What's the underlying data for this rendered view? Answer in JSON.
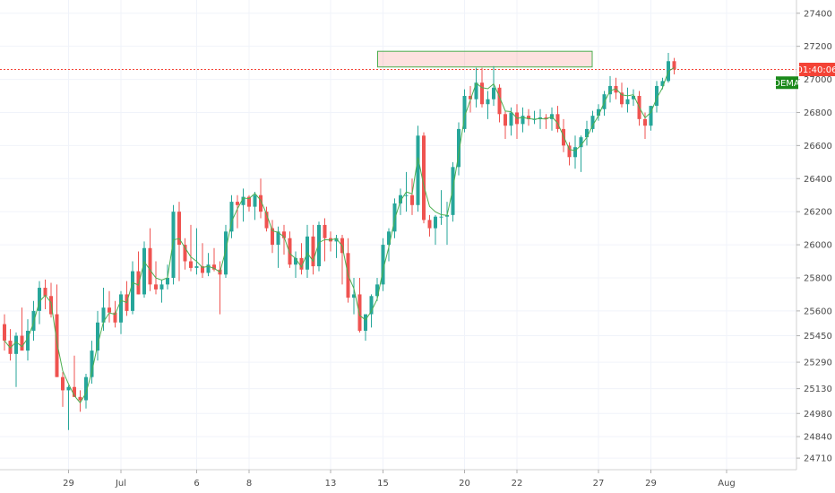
{
  "chart_data": {
    "type": "candlestick",
    "title": "",
    "xlabel": "",
    "ylabel": "",
    "ylim": [
      24640,
      27480
    ],
    "y_ticks": [
      "27400",
      "27200",
      "27000",
      "26800",
      "26600",
      "26400",
      "26200",
      "26000",
      "25800",
      "25600",
      "25450",
      "25290",
      "25130",
      "24980",
      "24840",
      "24710"
    ],
    "x_ticks": [
      {
        "label": "29",
        "bar": 11
      },
      {
        "label": "Jul",
        "bar": 20
      },
      {
        "label": "6",
        "bar": 33
      },
      {
        "label": "8",
        "bar": 42
      },
      {
        "label": "13",
        "bar": 56
      },
      {
        "label": "15",
        "bar": 65
      },
      {
        "label": "20",
        "bar": 79
      },
      {
        "label": "22",
        "bar": 88
      },
      {
        "label": "27",
        "bar": 102
      },
      {
        "label": "29",
        "bar": 111
      },
      {
        "label": "Aug",
        "bar": 124
      }
    ],
    "bar_count": 134,
    "up_color": "#26a69a",
    "down_color": "#ef5350",
    "ma_color": "#4caf50",
    "grid": true,
    "current_price": {
      "label": "01:40:06",
      "value": 27060,
      "color": "#f44336"
    },
    "indicator_label": {
      "label": "DEMA",
      "value": 26980,
      "color": "#1b8a1b"
    },
    "zone": {
      "bar_start": 65,
      "bar_end": 100,
      "low": 27075,
      "high": 27170
    },
    "candles": [
      [
        25520,
        25580,
        25360,
        25420
      ],
      [
        25420,
        25490,
        25300,
        25340
      ],
      [
        25340,
        25470,
        25140,
        25450
      ],
      [
        25450,
        25620,
        25380,
        25360
      ],
      [
        25360,
        25550,
        25300,
        25480
      ],
      [
        25480,
        25660,
        25420,
        25600
      ],
      [
        25600,
        25780,
        25520,
        25740
      ],
      [
        25740,
        25790,
        25610,
        25690
      ],
      [
        25690,
        25770,
        25560,
        25580
      ],
      [
        25580,
        25760,
        25200,
        25200
      ],
      [
        25200,
        25230,
        25020,
        25120
      ],
      [
        25120,
        25150,
        24880,
        25140
      ],
      [
        25140,
        25330,
        25080,
        25080
      ],
      [
        25080,
        25120,
        24990,
        25060
      ],
      [
        25060,
        25220,
        25010,
        25200
      ],
      [
        25200,
        25420,
        25160,
        25360
      ],
      [
        25360,
        25600,
        25300,
        25530
      ],
      [
        25530,
        25740,
        25480,
        25620
      ],
      [
        25620,
        25720,
        25530,
        25590
      ],
      [
        25590,
        25660,
        25500,
        25530
      ],
      [
        25530,
        25720,
        25460,
        25700
      ],
      [
        25700,
        25780,
        25570,
        25600
      ],
      [
        25600,
        25900,
        25580,
        25840
      ],
      [
        25840,
        25960,
        25700,
        25700
      ],
      [
        25700,
        26020,
        25680,
        25980
      ],
      [
        25980,
        26100,
        25720,
        25760
      ],
      [
        25760,
        25900,
        25700,
        25730
      ],
      [
        25730,
        25790,
        25650,
        25760
      ],
      [
        25760,
        25880,
        25730,
        25800
      ],
      [
        25800,
        26240,
        25760,
        26200
      ],
      [
        26200,
        26260,
        25780,
        26000
      ],
      [
        26000,
        26040,
        25850,
        25900
      ],
      [
        25900,
        26120,
        25840,
        25860
      ],
      [
        25860,
        26100,
        25820,
        25870
      ],
      [
        25870,
        26010,
        25800,
        25830
      ],
      [
        25830,
        25950,
        25810,
        25880
      ],
      [
        25880,
        25980,
        25840,
        25850
      ],
      [
        25850,
        25900,
        25580,
        25820
      ],
      [
        25820,
        26120,
        25800,
        26080
      ],
      [
        26080,
        26300,
        26040,
        26260
      ],
      [
        26260,
        26300,
        26100,
        26240
      ],
      [
        26240,
        26340,
        26140,
        26290
      ],
      [
        26290,
        26300,
        26200,
        26230
      ],
      [
        26230,
        26320,
        26150,
        26300
      ],
      [
        26300,
        26400,
        26160,
        26200
      ],
      [
        26200,
        26230,
        26080,
        26100
      ],
      [
        26100,
        26150,
        25950,
        26000
      ],
      [
        26000,
        26110,
        25860,
        26080
      ],
      [
        26080,
        26120,
        25940,
        26040
      ],
      [
        26040,
        26080,
        25860,
        25880
      ],
      [
        25880,
        25960,
        25800,
        25920
      ],
      [
        25920,
        26010,
        25820,
        25850
      ],
      [
        25850,
        26120,
        25800,
        26050
      ],
      [
        26050,
        26120,
        25820,
        25870
      ],
      [
        25870,
        26140,
        25840,
        26120
      ],
      [
        26120,
        26160,
        25900,
        26040
      ],
      [
        26040,
        26080,
        25960,
        26020
      ],
      [
        26020,
        26060,
        25920,
        26040
      ],
      [
        26040,
        26060,
        25760,
        25950
      ],
      [
        25950,
        26040,
        25650,
        25680
      ],
      [
        25680,
        25800,
        25580,
        25700
      ],
      [
        25700,
        25800,
        25470,
        25480
      ],
      [
        25480,
        25560,
        25420,
        25580
      ],
      [
        25580,
        25700,
        25500,
        25690
      ],
      [
        25690,
        25800,
        25660,
        25760
      ],
      [
        25760,
        26040,
        25720,
        26000
      ],
      [
        26000,
        26100,
        25900,
        26080
      ],
      [
        26080,
        26280,
        26040,
        26250
      ],
      [
        26250,
        26340,
        26180,
        26300
      ],
      [
        26300,
        26440,
        26200,
        26300
      ],
      [
        26300,
        26400,
        26180,
        26240
      ],
      [
        26240,
        26720,
        26200,
        26660
      ],
      [
        26660,
        26680,
        26130,
        26150
      ],
      [
        26150,
        26180,
        26050,
        26100
      ],
      [
        26100,
        26180,
        26000,
        26170
      ],
      [
        26170,
        26330,
        26120,
        26170
      ],
      [
        26170,
        26260,
        26000,
        26180
      ],
      [
        26180,
        26500,
        26140,
        26470
      ],
      [
        26470,
        26740,
        26420,
        26700
      ],
      [
        26700,
        26940,
        26680,
        26900
      ],
      [
        26900,
        26960,
        26800,
        26880
      ],
      [
        26880,
        27070,
        26830,
        26980
      ],
      [
        26980,
        27070,
        26830,
        26850
      ],
      [
        26850,
        26930,
        26760,
        26880
      ],
      [
        26880,
        27080,
        26840,
        26950
      ],
      [
        26950,
        26970,
        26740,
        26790
      ],
      [
        26790,
        26810,
        26640,
        26720
      ],
      [
        26720,
        26830,
        26660,
        26800
      ],
      [
        26800,
        26850,
        26640,
        26730
      ],
      [
        26730,
        26830,
        26680,
        26780
      ],
      [
        26780,
        26820,
        26720,
        26760
      ],
      [
        26760,
        26810,
        26730,
        26760
      ],
      [
        26760,
        26820,
        26700,
        26770
      ],
      [
        26770,
        26790,
        26700,
        26760
      ],
      [
        26760,
        26830,
        26690,
        26790
      ],
      [
        26790,
        26840,
        26680,
        26700
      ],
      [
        26700,
        26760,
        26560,
        26600
      ],
      [
        26600,
        26620,
        26480,
        26530
      ],
      [
        26530,
        26660,
        26460,
        26590
      ],
      [
        26590,
        26660,
        26440,
        26650
      ],
      [
        26650,
        26750,
        26600,
        26700
      ],
      [
        26700,
        26810,
        26680,
        26780
      ],
      [
        26780,
        26850,
        26750,
        26820
      ],
      [
        26820,
        26930,
        26780,
        26910
      ],
      [
        26910,
        27020,
        26860,
        26960
      ],
      [
        26960,
        27010,
        26880,
        26920
      ],
      [
        26920,
        26980,
        26830,
        26850
      ],
      [
        26850,
        26950,
        26800,
        26880
      ],
      [
        26880,
        26940,
        26840,
        26900
      ],
      [
        26900,
        26930,
        26720,
        26760
      ],
      [
        26760,
        26800,
        26640,
        26720
      ],
      [
        26720,
        26840,
        26690,
        26840
      ],
      [
        26840,
        26990,
        26800,
        26960
      ],
      [
        26960,
        27010,
        26940,
        26990
      ],
      [
        26990,
        27160,
        26980,
        27110
      ],
      [
        27110,
        27130,
        27030,
        27060
      ]
    ]
  }
}
